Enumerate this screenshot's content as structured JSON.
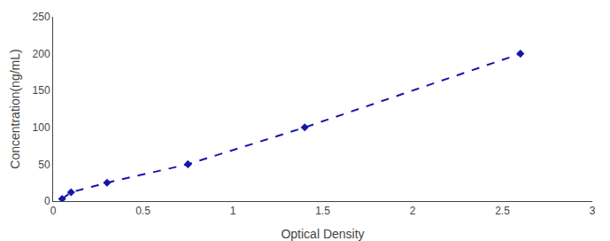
{
  "chart_data": {
    "type": "line",
    "x": [
      0.05,
      0.1,
      0.3,
      0.75,
      1.4,
      2.6
    ],
    "values": [
      3,
      12,
      25,
      50,
      100,
      200
    ],
    "color": "#1515aa",
    "marker": "diamond",
    "line_style": "dashed",
    "xlabel": "Optical Density",
    "ylabel": "Concentration(ng/mL)",
    "xlim": [
      0,
      3
    ],
    "ylim": [
      0,
      250
    ],
    "xticks": [
      0,
      0.5,
      1,
      1.5,
      2,
      2.5,
      3
    ],
    "yticks": [
      0,
      50,
      100,
      150,
      200,
      250
    ],
    "grid": false
  }
}
